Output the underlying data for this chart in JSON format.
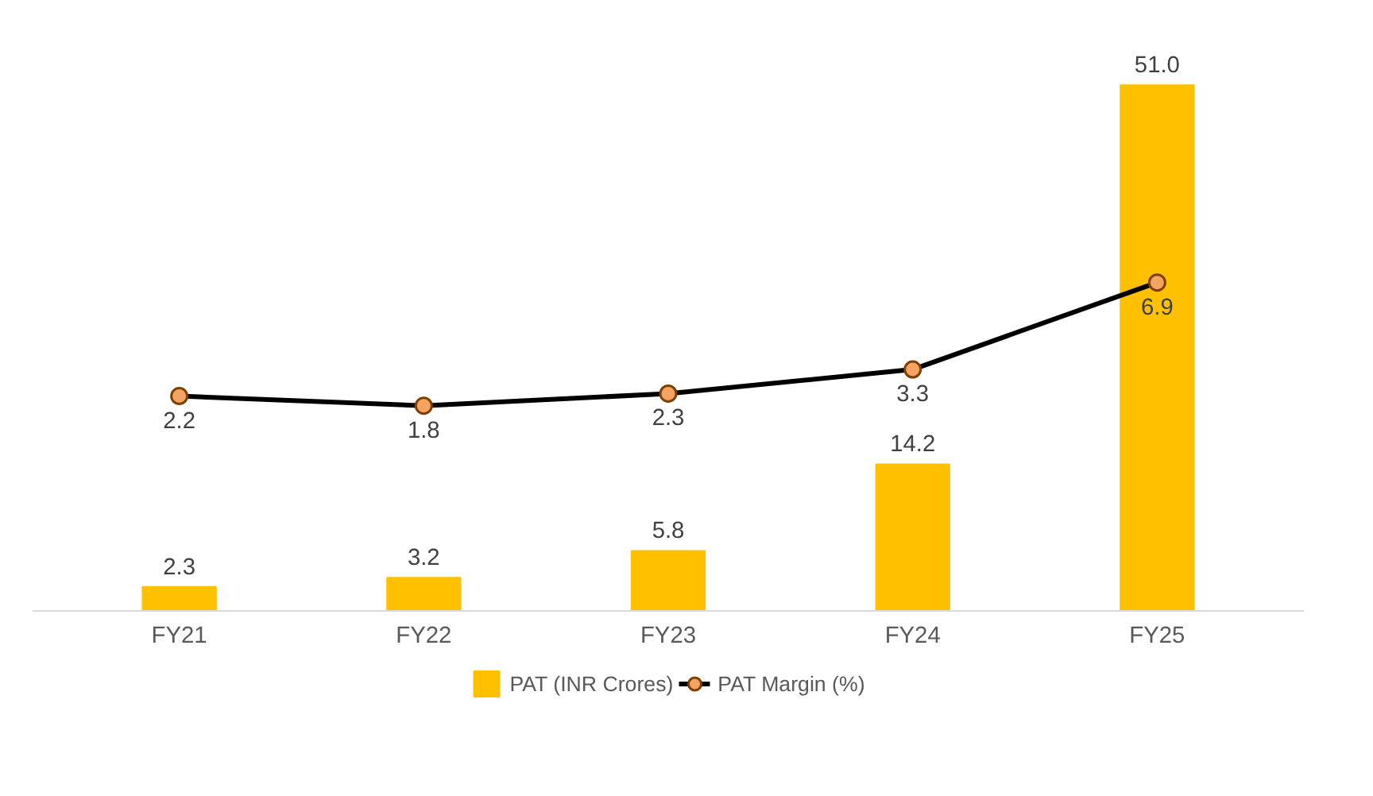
{
  "chart_data": {
    "type": "bar",
    "categories": [
      "FY21",
      "FY22",
      "FY23",
      "FY24",
      "FY25"
    ],
    "series": [
      {
        "name": "PAT (INR Crores)",
        "color": "#ffc000",
        "values": [
          2.3,
          3.2,
          5.8,
          14.2,
          51.0
        ],
        "value_labels": [
          "2.3",
          "3.2",
          "5.8",
          "14.2",
          "51.0"
        ]
      },
      {
        "name": "PAT Margin (%)",
        "type": "line",
        "axis": "y2",
        "color": "#000000",
        "values": [
          2.2,
          1.8,
          2.3,
          3.3,
          6.9
        ]
      }
    ],
    "data_labels": true,
    "legend": "bottom",
    "marker": "circle",
    "line_style": "solid",
    "tick_labels": "x"
  }
}
